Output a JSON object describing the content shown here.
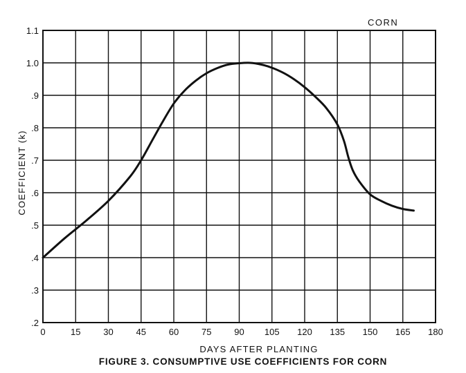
{
  "chart_data": {
    "type": "line",
    "annotation": "CORN",
    "caption": "FIGURE 3. CONSUMPTIVE USE COEFFICIENTS FOR CORN",
    "xlabel": "DAYS AFTER PLANTING",
    "ylabel": "COEFFICIENT (k)",
    "xlim": [
      0,
      180
    ],
    "ylim": [
      0.2,
      1.1
    ],
    "grid": true,
    "x_ticks": [
      0,
      15,
      30,
      45,
      60,
      75,
      90,
      105,
      120,
      135,
      150,
      165,
      180
    ],
    "x_tick_labels": [
      "0",
      "15",
      "30",
      "45",
      "60",
      "75",
      "90",
      "105",
      "120",
      "135",
      "150",
      "165",
      "180"
    ],
    "y_ticks": [
      0.2,
      0.3,
      0.4,
      0.5,
      0.6,
      0.7,
      0.8,
      0.9,
      1.0,
      1.1
    ],
    "y_tick_labels": [
      ".2",
      ".3",
      ".4",
      ".5",
      ".6",
      ".7",
      ".8",
      ".9",
      "1.0",
      "1.1"
    ],
    "series": [
      {
        "x": [
          0,
          10,
          20,
          30,
          40,
          45,
          50,
          55,
          60,
          65,
          70,
          75,
          80,
          85,
          90,
          95,
          100,
          105,
          110,
          115,
          120,
          125,
          130,
          135,
          138,
          140,
          142,
          145,
          150,
          155,
          160,
          165,
          170
        ],
        "y": [
          0.4,
          0.46,
          0.515,
          0.575,
          0.65,
          0.7,
          0.76,
          0.82,
          0.875,
          0.915,
          0.945,
          0.968,
          0.984,
          0.995,
          0.999,
          1.0,
          0.995,
          0.985,
          0.97,
          0.95,
          0.925,
          0.895,
          0.86,
          0.81,
          0.76,
          0.71,
          0.67,
          0.635,
          0.595,
          0.575,
          0.56,
          0.55,
          0.545
        ]
      }
    ]
  }
}
